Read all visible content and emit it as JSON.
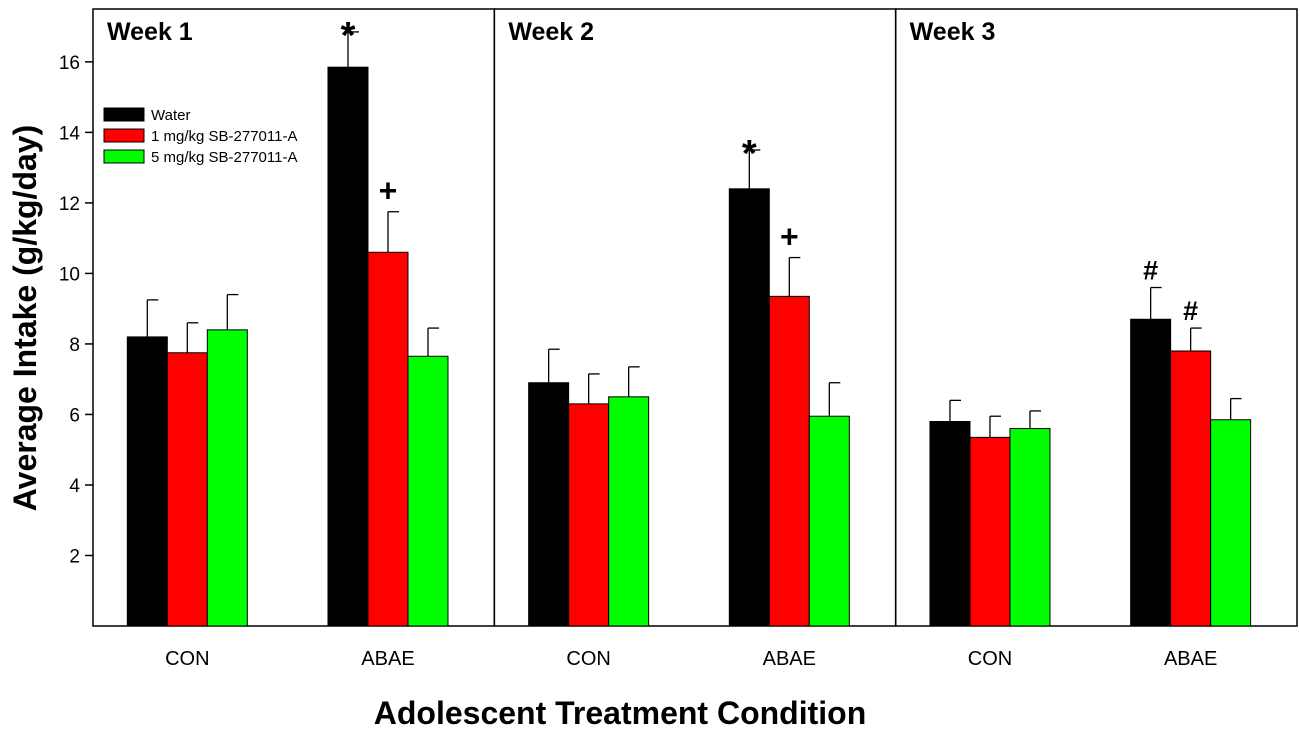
{
  "chart_data": {
    "type": "bar",
    "ylabel": "Average Intake (g/kg/day)",
    "xlabel": "Adolescent Treatment Condition",
    "ylim": [
      0,
      17.5
    ],
    "yticks": [
      2,
      4,
      6,
      8,
      10,
      12,
      14,
      16
    ],
    "legend": {
      "position": "upper-left of first panel",
      "entries": [
        "Water",
        "1 mg/kg SB-277011-A",
        "5 mg/kg SB-277011-A"
      ]
    },
    "series_colors": [
      "#000000",
      "#ff0000",
      "#00ff00"
    ],
    "panels": [
      {
        "title": "Week 1",
        "categories": [
          "CON",
          "ABAE"
        ],
        "series": [
          {
            "name": "Water",
            "values": [
              8.2,
              15.85
            ],
            "errors": [
              1.05,
              1.0
            ],
            "marks": [
              "",
              "*"
            ]
          },
          {
            "name": "1 mg/kg SB-277011-A",
            "values": [
              7.75,
              10.6
            ],
            "errors": [
              0.85,
              1.15
            ],
            "marks": [
              "",
              "+"
            ]
          },
          {
            "name": "5 mg/kg SB-277011-A",
            "values": [
              8.4,
              7.65
            ],
            "errors": [
              1.0,
              0.8
            ],
            "marks": [
              "",
              ""
            ]
          }
        ]
      },
      {
        "title": "Week 2",
        "categories": [
          "CON",
          "ABAE"
        ],
        "series": [
          {
            "name": "Water",
            "values": [
              6.9,
              12.4
            ],
            "errors": [
              0.95,
              1.1
            ],
            "marks": [
              "",
              "*"
            ]
          },
          {
            "name": "1 mg/kg SB-277011-A",
            "values": [
              6.3,
              9.35
            ],
            "errors": [
              0.85,
              1.1
            ],
            "marks": [
              "",
              "+"
            ]
          },
          {
            "name": "5 mg/kg SB-277011-A",
            "values": [
              6.5,
              5.95
            ],
            "errors": [
              0.85,
              0.95
            ],
            "marks": [
              "",
              ""
            ]
          }
        ]
      },
      {
        "title": "Week 3",
        "categories": [
          "CON",
          "ABAE"
        ],
        "series": [
          {
            "name": "Water",
            "values": [
              5.8,
              8.7
            ],
            "errors": [
              0.6,
              0.9
            ],
            "marks": [
              "",
              "#"
            ]
          },
          {
            "name": "1 mg/kg SB-277011-A",
            "values": [
              5.35,
              7.8
            ],
            "errors": [
              0.6,
              0.65
            ],
            "marks": [
              "",
              "#"
            ]
          },
          {
            "name": "5 mg/kg SB-277011-A",
            "values": [
              5.6,
              5.85
            ],
            "errors": [
              0.5,
              0.6
            ],
            "marks": [
              "",
              ""
            ]
          }
        ]
      }
    ]
  }
}
